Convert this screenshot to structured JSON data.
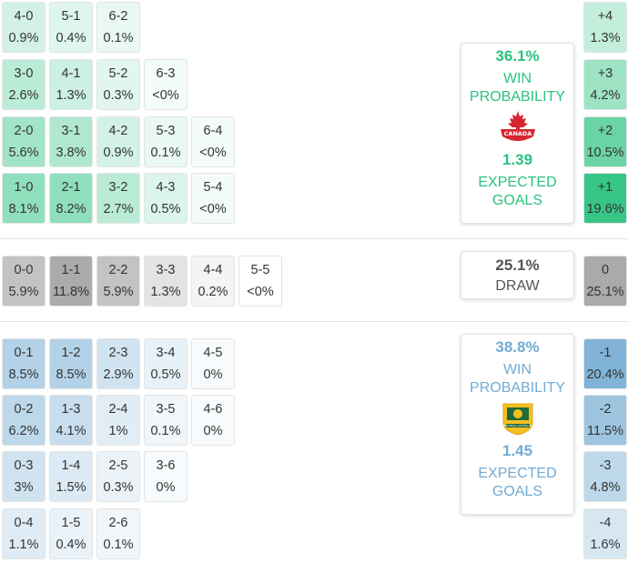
{
  "colors": {
    "home_accent": "#2bc280",
    "away_accent": "#72abd3",
    "draw_accent": "#555555"
  },
  "home": {
    "team_logo": "canada-soccer-crest",
    "logo_text": "CANADA",
    "win_pct": "36.1%",
    "win_label": "WIN PROBABILITY",
    "xg": "1.39",
    "xg_label": "EXPECTED GOALS",
    "scores": [
      [
        {
          "s": "4-0",
          "p": "0.9%",
          "v": 0.9
        },
        {
          "s": "5-1",
          "p": "0.4%",
          "v": 0.4
        },
        {
          "s": "6-2",
          "p": "0.1%",
          "v": 0.1
        }
      ],
      [
        {
          "s": "3-0",
          "p": "2.6%",
          "v": 2.6
        },
        {
          "s": "4-1",
          "p": "1.3%",
          "v": 1.3
        },
        {
          "s": "5-2",
          "p": "0.3%",
          "v": 0.3
        },
        {
          "s": "6-3",
          "p": "<0%",
          "v": 0
        }
      ],
      [
        {
          "s": "2-0",
          "p": "5.6%",
          "v": 5.6
        },
        {
          "s": "3-1",
          "p": "3.8%",
          "v": 3.8
        },
        {
          "s": "4-2",
          "p": "0.9%",
          "v": 0.9
        },
        {
          "s": "5-3",
          "p": "0.1%",
          "v": 0.1
        },
        {
          "s": "6-4",
          "p": "<0%",
          "v": 0
        }
      ],
      [
        {
          "s": "1-0",
          "p": "8.1%",
          "v": 8.1
        },
        {
          "s": "2-1",
          "p": "8.2%",
          "v": 8.2
        },
        {
          "s": "3-2",
          "p": "2.7%",
          "v": 2.7
        },
        {
          "s": "4-3",
          "p": "0.5%",
          "v": 0.5
        },
        {
          "s": "5-4",
          "p": "<0%",
          "v": 0
        }
      ]
    ],
    "margins": [
      {
        "m": "+4",
        "p": "1.3%",
        "v": 1.3
      },
      {
        "m": "+3",
        "p": "4.2%",
        "v": 4.2
      },
      {
        "m": "+2",
        "p": "10.5%",
        "v": 10.5
      },
      {
        "m": "+1",
        "p": "19.6%",
        "v": 19.6
      }
    ]
  },
  "draw": {
    "pct": "25.1%",
    "label": "DRAW",
    "scores": [
      {
        "s": "0-0",
        "p": "5.9%",
        "v": 5.9
      },
      {
        "s": "1-1",
        "p": "11.8%",
        "v": 11.8
      },
      {
        "s": "2-2",
        "p": "5.9%",
        "v": 5.9
      },
      {
        "s": "3-3",
        "p": "1.3%",
        "v": 1.3
      },
      {
        "s": "4-4",
        "p": "0.2%",
        "v": 0.2
      },
      {
        "s": "5-5",
        "p": "<0%",
        "v": 0
      }
    ],
    "margin": {
      "m": "0",
      "p": "25.1%",
      "v": 25.1
    }
  },
  "away": {
    "team_logo": "australia-football-crest",
    "logo_text": "FOOTBALL AUSTRALIA",
    "win_pct": "38.8%",
    "win_label": "WIN PROBABILITY",
    "xg": "1.45",
    "xg_label": "EXPECTED GOALS",
    "scores": [
      [
        {
          "s": "0-1",
          "p": "8.5%",
          "v": 8.5
        },
        {
          "s": "1-2",
          "p": "8.5%",
          "v": 8.5
        },
        {
          "s": "2-3",
          "p": "2.9%",
          "v": 2.9
        },
        {
          "s": "3-4",
          "p": "0.5%",
          "v": 0.5
        },
        {
          "s": "4-5",
          "p": "0%",
          "v": 0
        }
      ],
      [
        {
          "s": "0-2",
          "p": "6.2%",
          "v": 6.2
        },
        {
          "s": "1-3",
          "p": "4.1%",
          "v": 4.1
        },
        {
          "s": "2-4",
          "p": "1%",
          "v": 1
        },
        {
          "s": "3-5",
          "p": "0.1%",
          "v": 0.1
        },
        {
          "s": "4-6",
          "p": "0%",
          "v": 0
        }
      ],
      [
        {
          "s": "0-3",
          "p": "3%",
          "v": 3
        },
        {
          "s": "1-4",
          "p": "1.5%",
          "v": 1.5
        },
        {
          "s": "2-5",
          "p": "0.3%",
          "v": 0.3
        },
        {
          "s": "3-6",
          "p": "0%",
          "v": 0
        }
      ],
      [
        {
          "s": "0-4",
          "p": "1.1%",
          "v": 1.1
        },
        {
          "s": "1-5",
          "p": "0.4%",
          "v": 0.4
        },
        {
          "s": "2-6",
          "p": "0.1%",
          "v": 0.1
        }
      ]
    ],
    "margins": [
      {
        "m": "-1",
        "p": "20.4%",
        "v": 20.4
      },
      {
        "m": "-2",
        "p": "11.5%",
        "v": 11.5
      },
      {
        "m": "-3",
        "p": "4.8%",
        "v": 4.8
      },
      {
        "m": "-4",
        "p": "1.6%",
        "v": 1.6
      }
    ]
  }
}
